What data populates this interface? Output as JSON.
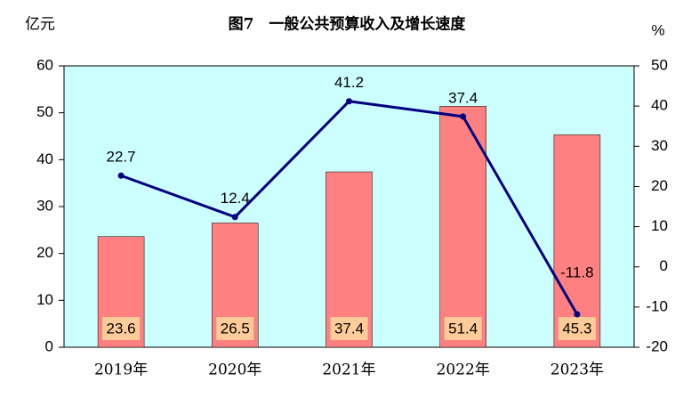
{
  "chart_data": {
    "type": "combo",
    "title": "图7　一般公共预算收入及增长速度",
    "y_label": "亿元",
    "y2_label": "%",
    "categories": [
      "2019年",
      "2020年",
      "2021年",
      "2022年",
      "2023年"
    ],
    "series": [
      {
        "type": "bar",
        "color": "#ff8080",
        "values": [
          23.6,
          26.5,
          37.4,
          51.4,
          45.3
        ]
      },
      {
        "type": "line",
        "color": "#000080",
        "axis": "y2",
        "values": [
          22.7,
          12.4,
          41.2,
          37.4,
          -11.8
        ]
      }
    ],
    "ylim": [
      0,
      60
    ],
    "yticks": [
      0,
      10,
      20,
      30,
      40,
      50,
      60
    ],
    "y2lim": [
      -20,
      50
    ],
    "y2ticks": [
      -20,
      -10,
      0,
      10,
      20,
      30,
      40,
      50
    ],
    "plot_background": "#ccffff"
  }
}
